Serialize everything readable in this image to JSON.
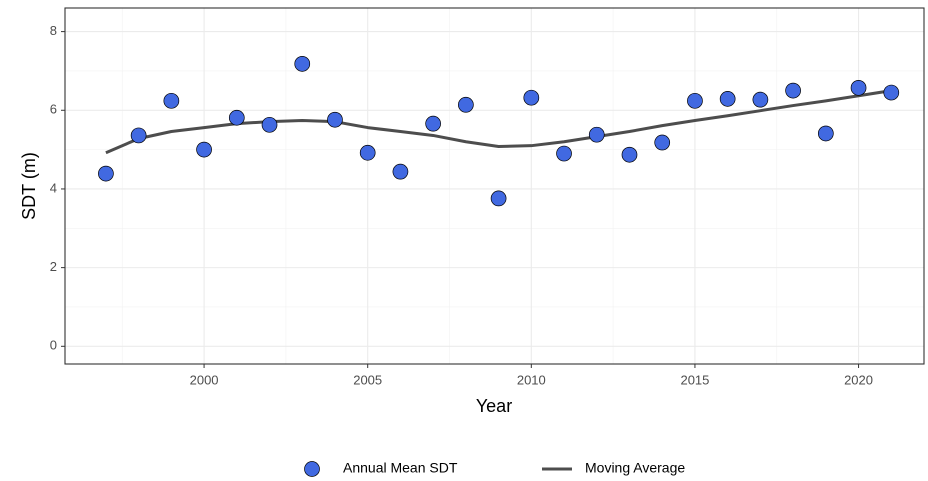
{
  "chart_data": {
    "type": "scatter",
    "x_label": "Year",
    "y_label": "SDT (m)",
    "x": [
      1997,
      1998,
      1999,
      2000,
      2001,
      2002,
      2003,
      2004,
      2005,
      2006,
      2007,
      2008,
      2009,
      2010,
      2011,
      2012,
      2013,
      2014,
      2015,
      2016,
      2017,
      2018,
      2019,
      2020,
      2021
    ],
    "series": [
      {
        "name": "Annual Mean SDT",
        "mark": "point",
        "color": "#4169e1",
        "values": [
          4.39,
          5.36,
          6.24,
          5.0,
          5.81,
          5.63,
          7.18,
          5.76,
          4.92,
          4.44,
          5.66,
          6.14,
          3.76,
          6.32,
          4.9,
          5.38,
          4.87,
          5.18,
          6.24,
          6.29,
          6.27,
          6.5,
          5.41,
          6.57,
          6.45
        ]
      },
      {
        "name": "Moving Average",
        "mark": "line",
        "color": "#4d4d4d",
        "values": [
          4.92,
          5.28,
          5.46,
          5.56,
          5.66,
          5.71,
          5.74,
          5.71,
          5.56,
          5.46,
          5.36,
          5.2,
          5.08,
          5.1,
          5.2,
          5.33,
          5.46,
          5.61,
          5.74,
          5.86,
          5.99,
          6.12,
          6.24,
          6.37,
          6.5
        ]
      }
    ],
    "xlim": [
      1995.75,
      2022.0
    ],
    "xticks": [
      2000,
      2005,
      2010,
      2015,
      2020
    ],
    "ylim": [
      -0.45,
      8.6
    ],
    "yticks": [
      0,
      2,
      4,
      6,
      8
    ],
    "grid": true,
    "minor_grid": true,
    "legend": "bottom"
  }
}
